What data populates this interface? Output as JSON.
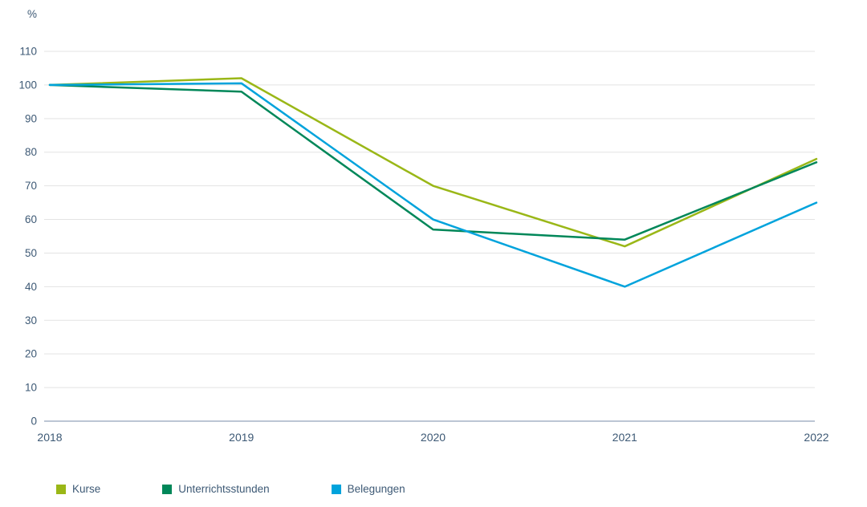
{
  "chart_data": {
    "type": "line",
    "title": "",
    "unit_label": "%",
    "categories": [
      "2018",
      "2019",
      "2020",
      "2021",
      "2022"
    ],
    "series": [
      {
        "name": "Kurse",
        "color": "#9ab717",
        "values": [
          100,
          102,
          70,
          52,
          78
        ]
      },
      {
        "name": "Unterrichtsstunden",
        "color": "#008759",
        "values": [
          100,
          98,
          57,
          54,
          77
        ]
      },
      {
        "name": "Belegungen",
        "color": "#00a3dc",
        "values": [
          100,
          100.5,
          60,
          40,
          65
        ]
      }
    ],
    "yaxis": {
      "min": 0,
      "max": 110,
      "step": 10,
      "tick_labels": [
        "0",
        "10",
        "20",
        "30",
        "40",
        "50",
        "60",
        "70",
        "80",
        "90",
        "100",
        "110"
      ]
    },
    "xlabel": "",
    "ylabel": "%",
    "grid": true,
    "legend_position": "bottom"
  },
  "colors": {
    "text": "#3d5975",
    "gridline": "#e3e3e3",
    "axis_line": "#788ca8",
    "background": "#ffffff"
  },
  "legend": {
    "items": [
      {
        "label": "Kurse"
      },
      {
        "label": "Unterrichtsstunden"
      },
      {
        "label": "Belegungen"
      }
    ]
  }
}
